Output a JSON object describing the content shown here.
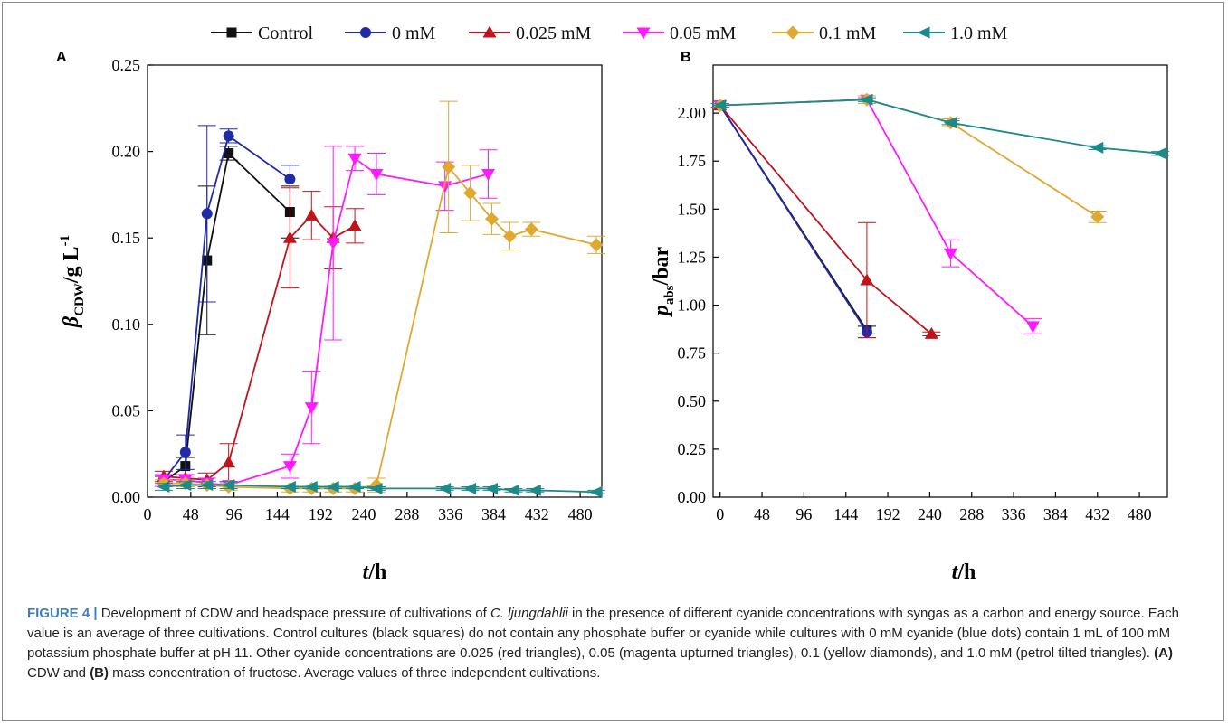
{
  "panels": [
    {
      "letter": "A"
    },
    {
      "letter": "B"
    }
  ],
  "legend": [
    {
      "name": "Control",
      "color": "#111111",
      "marker": "square"
    },
    {
      "name": "0 mM",
      "color": "#1f2aa8",
      "marker": "circle"
    },
    {
      "name": "0.025 mM",
      "color": "#c0141b",
      "marker": "triangle-up"
    },
    {
      "name": "0.05 mM",
      "color": "#ff1aff",
      "marker": "triangle-down"
    },
    {
      "name": "0.1 mM",
      "color": "#e0a830",
      "marker": "diamond"
    },
    {
      "name": "1.0 mM",
      "color": "#1a8a8a",
      "marker": "triangle-left"
    }
  ],
  "chart_data": [
    {
      "type": "line",
      "xlabel_var": "t",
      "xlabel_unit": "/h",
      "ylabel_var": "β",
      "ylabel_sub": "CDW",
      "ylabel_unit": "/g L",
      "ylabel_sup": "-1",
      "xlim": [
        0,
        504
      ],
      "ylim": [
        0,
        0.25
      ],
      "xticks": [
        "0",
        "48",
        "96",
        "144",
        "192",
        "240",
        "288",
        "336",
        "384",
        "432",
        "480"
      ],
      "yticks": [
        "0.00",
        "0.05",
        "0.10",
        "0.15",
        "0.20",
        "0.25"
      ],
      "series": [
        {
          "name": "Control",
          "x": [
            18,
            42,
            66,
            90,
            158
          ],
          "y": [
            0.009,
            0.018,
            0.137,
            0.199,
            0.165
          ],
          "err": [
            0.003,
            0.005,
            0.043,
            0.004,
            0.015
          ]
        },
        {
          "name": "0 mM",
          "x": [
            18,
            42,
            66,
            90,
            158
          ],
          "y": [
            0.01,
            0.026,
            0.164,
            0.209,
            0.184
          ],
          "err": [
            0.003,
            0.01,
            0.051,
            0.004,
            0.008
          ]
        },
        {
          "name": "0.025 mM",
          "x": [
            18,
            42,
            66,
            90,
            158,
            182,
            206,
            230
          ],
          "y": [
            0.012,
            0.011,
            0.01,
            0.02,
            0.15,
            0.163,
            0.15,
            0.157
          ],
          "err": [
            0.003,
            0.002,
            0.004,
            0.011,
            0.029,
            0.014,
            0.018,
            0.01
          ]
        },
        {
          "name": "0.05 mM",
          "x": [
            18,
            42,
            66,
            90,
            158,
            182,
            206,
            230,
            254,
            330,
            378
          ],
          "y": [
            0.01,
            0.01,
            0.008,
            0.007,
            0.018,
            0.052,
            0.147,
            0.196,
            0.187,
            0.18,
            0.187
          ],
          "err": [
            0.003,
            0.003,
            0.003,
            0.002,
            0.007,
            0.021,
            0.056,
            0.007,
            0.012,
            0.014,
            0.014
          ]
        },
        {
          "name": "0.1 mM",
          "x": [
            18,
            42,
            66,
            90,
            158,
            182,
            206,
            230,
            254,
            334,
            358,
            382,
            402,
            426,
            498
          ],
          "y": [
            0.008,
            0.008,
            0.007,
            0.006,
            0.005,
            0.005,
            0.005,
            0.005,
            0.007,
            0.191,
            0.176,
            0.161,
            0.151,
            0.155,
            0.146
          ],
          "err": [
            0.002,
            0.002,
            0.002,
            0.002,
            0.002,
            0.002,
            0.002,
            0.002,
            0.004,
            0.038,
            0.016,
            0.009,
            0.008,
            0.004,
            0.005
          ]
        },
        {
          "name": "1.0 mM",
          "x": [
            18,
            42,
            66,
            90,
            158,
            182,
            206,
            230,
            254,
            330,
            358,
            382,
            406,
            430,
            498
          ],
          "y": [
            0.006,
            0.007,
            0.007,
            0.007,
            0.006,
            0.006,
            0.006,
            0.006,
            0.005,
            0.005,
            0.005,
            0.005,
            0.004,
            0.004,
            0.003
          ],
          "err": [
            0.002,
            0.002,
            0.002,
            0.002,
            0.001,
            0.001,
            0.001,
            0.001,
            0.001,
            0.001,
            0.001,
            0.001,
            0.001,
            0.001,
            0.001
          ]
        }
      ]
    },
    {
      "type": "line",
      "xlabel_var": "t",
      "xlabel_unit": "/h",
      "ylabel_var": "p",
      "ylabel_sub": "abs",
      "ylabel_unit": "/bar",
      "xlim": [
        -8,
        512
      ],
      "ylim": [
        0,
        2.25
      ],
      "xticks": [
        "0",
        "48",
        "96",
        "144",
        "192",
        "240",
        "288",
        "336",
        "384",
        "432",
        "480"
      ],
      "yticks": [
        "0.00",
        "0.25",
        "0.50",
        "0.75",
        "1.00",
        "1.25",
        "1.50",
        "1.75",
        "2.00"
      ],
      "series": [
        {
          "name": "Control",
          "x": [
            0,
            168
          ],
          "y": [
            2.04,
            0.87
          ],
          "err": [
            0.01,
            0.02
          ]
        },
        {
          "name": "0 mM",
          "x": [
            0,
            168
          ],
          "y": [
            2.04,
            0.86
          ],
          "err": [
            0.01,
            0.03
          ]
        },
        {
          "name": "0.025 mM",
          "x": [
            0,
            168,
            242
          ],
          "y": [
            2.04,
            1.13,
            0.85
          ],
          "err": [
            0.01,
            0.3,
            0.01
          ]
        },
        {
          "name": "0.05 mM",
          "x": [
            0,
            168,
            264,
            358
          ],
          "y": [
            2.04,
            2.07,
            1.27,
            0.89
          ],
          "err": [
            0.01,
            0.02,
            0.07,
            0.04
          ]
        },
        {
          "name": "0.1 mM",
          "x": [
            0,
            168,
            264,
            432
          ],
          "y": [
            2.04,
            2.07,
            1.95,
            1.46
          ],
          "err": [
            0.01,
            0.02,
            0.02,
            0.03
          ]
        },
        {
          "name": "1.0 mM",
          "x": [
            0,
            168,
            264,
            432,
            504
          ],
          "y": [
            2.04,
            2.07,
            1.95,
            1.82,
            1.79
          ],
          "err": [
            0.01,
            0.01,
            0.01,
            0.01,
            0.01
          ]
        }
      ]
    }
  ],
  "caption": {
    "figure_label": "FIGURE 4 | ",
    "part1": "Development of CDW and headspace pressure of cultivations of ",
    "species": "C. ljungdahlii",
    "part2": " in the presence of different cyanide concentrations with syngas as a carbon and energy source. Each value is an average of three cultivations. Control cultures (black squares) do not contain any phosphate buffer or cyanide while cultures with 0 mM cyanide (blue dots) contain 1 mL of 100 mM potassium phosphate buffer at pH 11. Other cyanide concentrations are 0.025 (red triangles), 0.05 (magenta upturned triangles), 0.1 (yellow diamonds), and 1.0 mM (petrol tilted triangles). ",
    "ref_a": "(A)",
    "part3": " CDW and ",
    "ref_b": "(B)",
    "part4": " mass concentration of fructose. Average values of three independent cultivations."
  }
}
